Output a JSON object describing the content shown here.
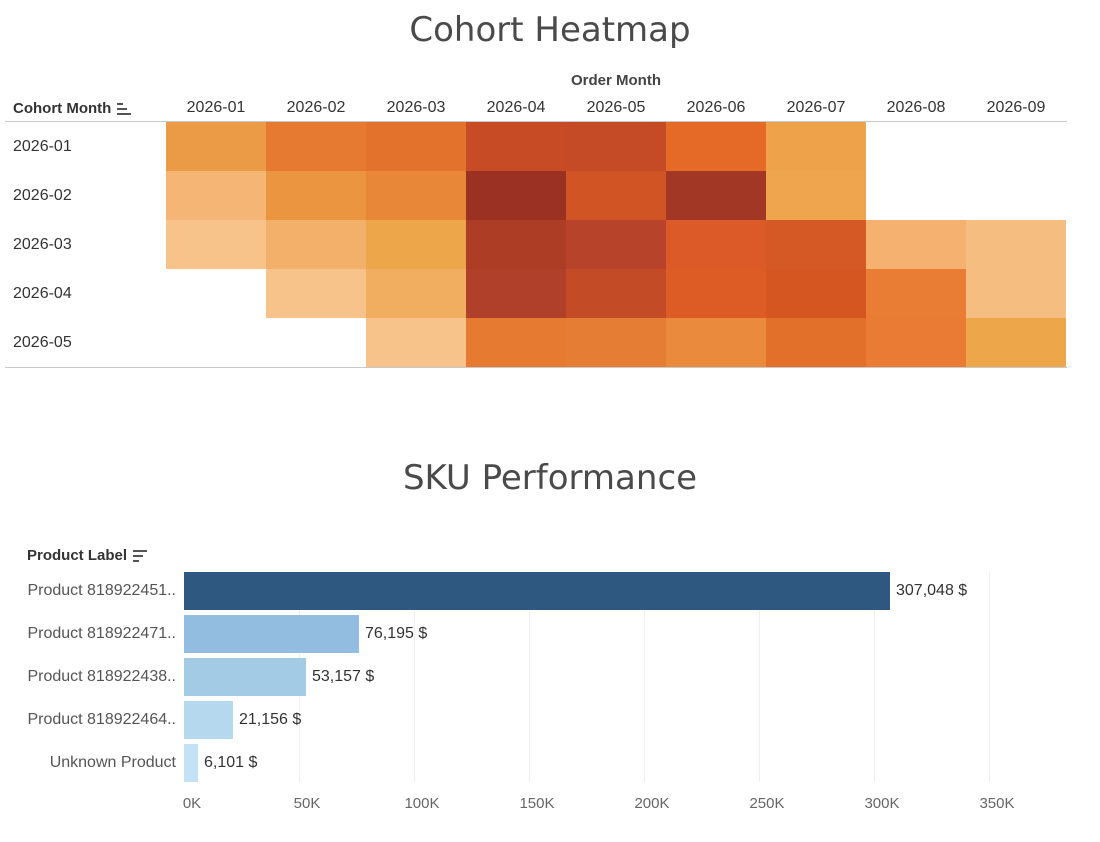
{
  "heatmap": {
    "title": "Cohort Heatmap",
    "column_header": "Order Month",
    "row_header": "Cohort Month",
    "columns": [
      "2026-01",
      "2026-02",
      "2026-03",
      "2026-04",
      "2026-05",
      "2026-06",
      "2026-07",
      "2026-08",
      "2026-09"
    ],
    "rows": [
      {
        "label": "2026-01",
        "cells": [
          "#eb9b45",
          "#e57a30",
          "#e3722c",
          "#c74c26",
          "#c44b25",
          "#e56a28",
          "#eea34b",
          null,
          null
        ]
      },
      {
        "label": "2026-02",
        "cells": [
          null,
          "#eb9540",
          "#e98738",
          "#9a3123",
          "#d15424",
          "#a33725",
          "#eea54d",
          null,
          null
        ]
      },
      {
        "label": "2026-03",
        "cells": [
          "#f8c38a",
          "#f3b06a",
          "#eea64b",
          "#ae3d26",
          "#b7442a",
          "#db5a27",
          "#d55924",
          "#f4b170",
          "#f6bd80"
        ]
      },
      {
        "label": "2026-04",
        "cells": [
          null,
          "#f8c38a",
          "#f2ae60",
          "#b1402a",
          "#c34b26",
          "#dd5b25",
          "#d55620",
          "#e97d33",
          "#f6bd80"
        ]
      },
      {
        "label": "2026-05",
        "cells": [
          null,
          null,
          "#f8c28b",
          "#e57a30",
          "#e67d35",
          "#ea8a3d",
          "#e2702b",
          "#e97b34",
          "#eea64b"
        ]
      }
    ],
    "leading_empty_cells": [
      {
        "label": "2026-02",
        "cells": [
          "#f4b575"
        ]
      }
    ]
  },
  "sku": {
    "title": "SKU Performance",
    "axis_title": "Product Label",
    "ticks": [
      "0K",
      "50K",
      "100K",
      "150K",
      "200K",
      "250K",
      "300K",
      "350K"
    ]
  },
  "chart_data": {
    "type": "bar",
    "orientation": "horizontal",
    "title": "SKU Performance",
    "ylabel": "Product Label",
    "categories": [
      "Product 818922451..",
      "Product 818922471..",
      "Product 818922438..",
      "Product 818922464..",
      "Unknown Product"
    ],
    "values": [
      307048,
      76195,
      53157,
      21156,
      6101
    ],
    "value_labels": [
      "307,048 $",
      "76,195 $",
      "53,157 $",
      "21,156 $",
      "6,101 $"
    ],
    "colors": [
      "#2e5880",
      "#92bde0",
      "#a4cbe6",
      "#b5d8ef",
      "#c4e2f5"
    ],
    "xlim": [
      0,
      350000
    ],
    "grid": true
  }
}
